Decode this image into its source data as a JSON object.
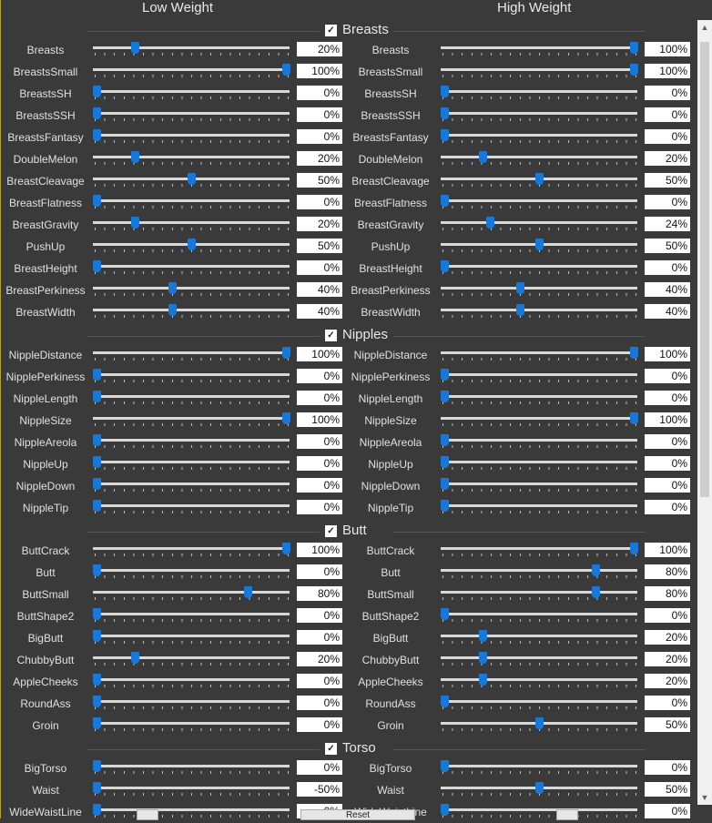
{
  "headers": {
    "low": "Low Weight",
    "high": "High Weight"
  },
  "sections": [
    {
      "label": "Breasts",
      "checked": true,
      "rows": [
        {
          "name": "Breasts",
          "low": "20%",
          "high": "100%",
          "low_frac": 0.2,
          "high_frac": 1.0
        },
        {
          "name": "BreastsSmall",
          "low": "100%",
          "high": "100%",
          "low_frac": 1.0,
          "high_frac": 1.0
        },
        {
          "name": "BreastsSH",
          "low": "0%",
          "high": "0%",
          "low_frac": 0,
          "high_frac": 0
        },
        {
          "name": "BreastsSSH",
          "low": "0%",
          "high": "0%",
          "low_frac": 0,
          "high_frac": 0
        },
        {
          "name": "BreastsFantasy",
          "low": "0%",
          "high": "0%",
          "low_frac": 0,
          "high_frac": 0
        },
        {
          "name": "DoubleMelon",
          "low": "20%",
          "high": "20%",
          "low_frac": 0.2,
          "high_frac": 0.2
        },
        {
          "name": "BreastCleavage",
          "low": "50%",
          "high": "50%",
          "low_frac": 0.5,
          "high_frac": 0.5
        },
        {
          "name": "BreastFlatness",
          "low": "0%",
          "high": "0%",
          "low_frac": 0,
          "high_frac": 0
        },
        {
          "name": "BreastGravity",
          "low": "20%",
          "high": "24%",
          "low_frac": 0.2,
          "high_frac": 0.24
        },
        {
          "name": "PushUp",
          "low": "50%",
          "high": "50%",
          "low_frac": 0.5,
          "high_frac": 0.5
        },
        {
          "name": "BreastHeight",
          "low": "0%",
          "high": "0%",
          "low_frac": 0,
          "high_frac": 0
        },
        {
          "name": "BreastPerkiness",
          "low": "40%",
          "high": "40%",
          "low_frac": 0.4,
          "high_frac": 0.4
        },
        {
          "name": "BreastWidth",
          "low": "40%",
          "high": "40%",
          "low_frac": 0.4,
          "high_frac": 0.4
        }
      ]
    },
    {
      "label": "Nipples",
      "checked": true,
      "rows": [
        {
          "name": "NippleDistance",
          "low": "100%",
          "high": "100%",
          "low_frac": 1,
          "high_frac": 1
        },
        {
          "name": "NipplePerkiness",
          "low": "0%",
          "high": "0%",
          "low_frac": 0,
          "high_frac": 0
        },
        {
          "name": "NippleLength",
          "low": "0%",
          "high": "0%",
          "low_frac": 0,
          "high_frac": 0
        },
        {
          "name": "NippleSize",
          "low": "100%",
          "high": "100%",
          "low_frac": 1,
          "high_frac": 1
        },
        {
          "name": "NippleAreola",
          "low": "0%",
          "high": "0%",
          "low_frac": 0,
          "high_frac": 0
        },
        {
          "name": "NippleUp",
          "low": "0%",
          "high": "0%",
          "low_frac": 0,
          "high_frac": 0
        },
        {
          "name": "NippleDown",
          "low": "0%",
          "high": "0%",
          "low_frac": 0,
          "high_frac": 0
        },
        {
          "name": "NippleTip",
          "low": "0%",
          "high": "0%",
          "low_frac": 0,
          "high_frac": 0
        }
      ]
    },
    {
      "label": "Butt",
      "checked": true,
      "rows": [
        {
          "name": "ButtCrack",
          "low": "100%",
          "high": "100%",
          "low_frac": 1,
          "high_frac": 1
        },
        {
          "name": "Butt",
          "low": "0%",
          "high": "80%",
          "low_frac": 0,
          "high_frac": 0.8
        },
        {
          "name": "ButtSmall",
          "low": "80%",
          "high": "80%",
          "low_frac": 0.8,
          "high_frac": 0.8
        },
        {
          "name": "ButtShape2",
          "low": "0%",
          "high": "0%",
          "low_frac": 0,
          "high_frac": 0
        },
        {
          "name": "BigButt",
          "low": "0%",
          "high": "20%",
          "low_frac": 0,
          "high_frac": 0.2
        },
        {
          "name": "ChubbyButt",
          "low": "20%",
          "high": "20%",
          "low_frac": 0.2,
          "high_frac": 0.2
        },
        {
          "name": "AppleCheeks",
          "low": "0%",
          "high": "20%",
          "low_frac": 0,
          "high_frac": 0.2
        },
        {
          "name": "RoundAss",
          "low": "0%",
          "high": "0%",
          "low_frac": 0,
          "high_frac": 0
        },
        {
          "name": "Groin",
          "low": "0%",
          "high": "50%",
          "low_frac": 0,
          "high_frac": 0.5
        }
      ]
    },
    {
      "label": "Torso",
      "checked": true,
      "rows": [
        {
          "name": "BigTorso",
          "low": "0%",
          "high": "0%",
          "low_frac": 0,
          "high_frac": 0
        },
        {
          "name": "Waist",
          "low": "-50%",
          "high": "50%",
          "low_frac": 0,
          "high_frac": 0.5
        },
        {
          "name": "WideWaistLine",
          "low": "0%",
          "high": "0%",
          "low_frac": 0,
          "high_frac": 0
        }
      ]
    }
  ],
  "scrollbar": {
    "up": "▲",
    "down": "▼"
  },
  "bottom_button": "Reset"
}
